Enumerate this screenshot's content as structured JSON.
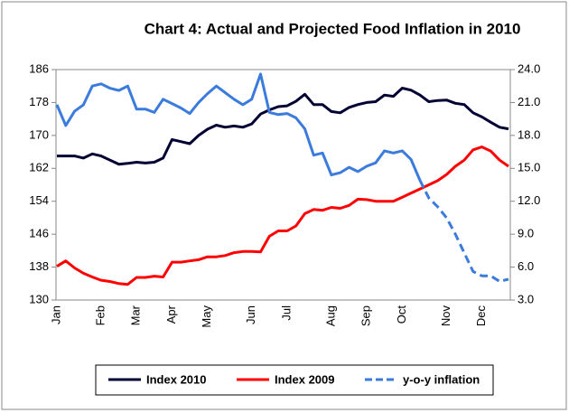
{
  "chart_data": {
    "type": "line",
    "title": "Chart 4: Actual and Projected Food Inflation in 2010",
    "categories": [
      "Jan",
      null,
      null,
      null,
      null,
      "Feb",
      null,
      null,
      null,
      "Mar",
      null,
      null,
      null,
      "Apr",
      null,
      null,
      null,
      "May",
      null,
      null,
      null,
      null,
      "Jun",
      null,
      null,
      null,
      "Jul",
      null,
      null,
      null,
      null,
      "Aug",
      null,
      null,
      null,
      "Sep",
      null,
      null,
      null,
      "Oct",
      null,
      null,
      null,
      null,
      "Nov",
      null,
      null,
      null,
      "Dec",
      null,
      null,
      null
    ],
    "series": [
      {
        "name": "Index 2010",
        "color": "#000033",
        "values": [
          165,
          165,
          165,
          164.5,
          165.5,
          165,
          164,
          163,
          163.2,
          163.5,
          163.3,
          163.5,
          164.5,
          169,
          168.5,
          168,
          170,
          171.5,
          172.5,
          172,
          172.3,
          172,
          172.8,
          175.2,
          176.2,
          177,
          177.2,
          178.3,
          180,
          177.5,
          177.5,
          175.8,
          175.5,
          176.8,
          177.5,
          178,
          178.2,
          179.8,
          179.5,
          181.5,
          181,
          179.8,
          178.2,
          178.5,
          178.6,
          177.8,
          177.5,
          175.5,
          174.5,
          173.2,
          172,
          171.6
        ]
      },
      {
        "name": "Index 2009",
        "color": "#ff0000",
        "values": [
          138.2,
          139.5,
          137.8,
          136.5,
          135.6,
          134.8,
          134.5,
          134,
          133.8,
          135.5,
          135.5,
          135.8,
          135.6,
          139.2,
          139.2,
          139.5,
          139.8,
          140.5,
          140.5,
          140.8,
          141.5,
          141.8,
          141.8,
          141.7,
          145.5,
          146.8,
          146.8,
          148,
          151,
          152,
          151.8,
          152.5,
          152.3,
          153,
          154.5,
          154.4,
          154,
          154,
          154,
          155,
          156,
          157,
          158,
          159,
          160.5,
          162.5,
          164,
          166.5,
          167.2,
          166.2,
          164,
          162.5
        ]
      },
      {
        "name": "y-o-y inflation",
        "color": "#3a7bdc",
        "axis": "y2",
        "dashed": true,
        "values": [
          20.8,
          18.9,
          20.2,
          20.8,
          22.5,
          22.7,
          22.3,
          22.1,
          22.5,
          20.4,
          20.4,
          20.1,
          21.3,
          20.9,
          20.5,
          20.0,
          21.0,
          21.8,
          22.5,
          21.9,
          21.3,
          20.8,
          21.3,
          23.6,
          20.1,
          19.9,
          20.0,
          19.6,
          18.6,
          16.2,
          16.4,
          14.4,
          14.6,
          15.1,
          14.7,
          15.2,
          15.5,
          16.6,
          16.4,
          16.6,
          15.8,
          13.9,
          12.3,
          11.5,
          10.5,
          9.0,
          7.3,
          5.6,
          5.2,
          5.2,
          4.7,
          4.9
        ]
      }
    ],
    "projected_from": 41,
    "ylim": [
      130,
      186
    ],
    "yticks": [
      130,
      138,
      146,
      154,
      162,
      170,
      178,
      186
    ],
    "y2lim": [
      3,
      24
    ],
    "y2ticks": [
      {
        "value": 3,
        "label": "3.0"
      },
      {
        "value": 6,
        "label": "6.0"
      },
      {
        "value": 9,
        "label": "9.0"
      },
      {
        "value": 12,
        "label": "12.0"
      },
      {
        "value": 15,
        "label": "15.0"
      },
      {
        "value": 18,
        "label": "18.0"
      },
      {
        "value": 21,
        "label": "21.0"
      },
      {
        "value": 24,
        "label": "24.0"
      }
    ],
    "legend": "bottom"
  }
}
